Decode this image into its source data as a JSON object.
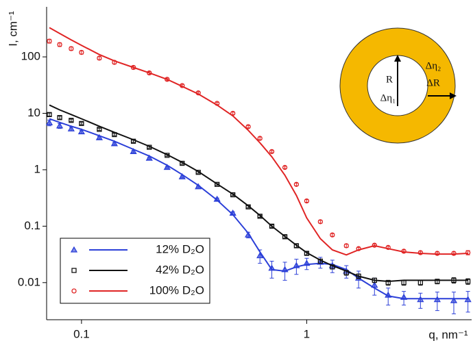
{
  "chart_data": {
    "type": "scatter",
    "x_label": "q, nm⁻¹",
    "y_label": "I, cm⁻¹",
    "log_x": true,
    "log_y": true,
    "xlim": [
      0.07,
      5.4
    ],
    "ylim": [
      0.0022,
      770
    ],
    "xticks": [
      0.1,
      1
    ],
    "yticks": [
      0.01,
      0.1,
      1,
      10,
      100
    ],
    "legend": "bottom-left",
    "x": [
      0.072,
      0.08,
      0.09,
      0.1,
      0.12,
      0.14,
      0.17,
      0.2,
      0.24,
      0.28,
      0.33,
      0.4,
      0.47,
      0.55,
      0.62,
      0.7,
      0.8,
      0.9,
      1.0,
      1.15,
      1.3,
      1.5,
      1.7,
      2.0,
      2.3,
      2.7,
      3.2,
      3.8,
      4.5,
      5.2
    ],
    "series": [
      {
        "name": "12% D₂O",
        "color": "#2b3fd8",
        "marker": "triangle",
        "values": [
          6.8,
          6.0,
          5.3,
          4.7,
          3.7,
          2.9,
          2.1,
          1.6,
          1.1,
          0.75,
          0.5,
          0.3,
          0.17,
          0.07,
          0.03,
          0.018,
          0.017,
          0.02,
          0.022,
          0.023,
          0.02,
          0.016,
          0.012,
          0.009,
          0.006,
          0.0055,
          0.005,
          0.005,
          0.0048,
          0.005
        ],
        "errors": [
          0.8,
          0.6,
          0.4,
          0.3,
          0.2,
          0.15,
          0.1,
          0.06,
          0.04,
          0.03,
          0.02,
          0.015,
          0.01,
          0.008,
          0.008,
          0.006,
          0.006,
          0.006,
          0.005,
          0.005,
          0.005,
          0.004,
          0.004,
          0.003,
          0.002,
          0.0015,
          0.0015,
          0.0018,
          0.002,
          0.002
        ],
        "fit": [
          8,
          6.9,
          5.9,
          5.2,
          4.0,
          3.2,
          2.3,
          1.75,
          1.2,
          0.82,
          0.53,
          0.29,
          0.16,
          0.075,
          0.035,
          0.017,
          0.016,
          0.019,
          0.021,
          0.022,
          0.021,
          0.017,
          0.012,
          0.008,
          0.0058,
          0.0052,
          0.0052,
          0.0052,
          0.0052,
          0.0052
        ]
      },
      {
        "name": "42% D₂O",
        "color": "#111111",
        "marker": "square",
        "values": [
          9.5,
          8.4,
          7.5,
          6.6,
          5.2,
          4.2,
          3.2,
          2.5,
          1.8,
          1.3,
          0.9,
          0.55,
          0.36,
          0.22,
          0.15,
          0.1,
          0.065,
          0.045,
          0.033,
          0.024,
          0.019,
          0.015,
          0.013,
          0.011,
          0.01,
          0.01,
          0.01,
          0.0105,
          0.011,
          0.0105
        ],
        "errors": [
          0.6,
          0.5,
          0.4,
          0.3,
          0.25,
          0.2,
          0.15,
          0.1,
          0.07,
          0.05,
          0.035,
          0.02,
          0.015,
          0.01,
          0.007,
          0.005,
          0.004,
          0.003,
          0.002,
          0.002,
          0.0015,
          0.0015,
          0.0012,
          0.001,
          0.001,
          0.001,
          0.001,
          0.001,
          0.0012,
          0.0012
        ],
        "fit": [
          14,
          11.5,
          9.5,
          8,
          5.9,
          4.6,
          3.4,
          2.6,
          1.85,
          1.35,
          0.93,
          0.56,
          0.37,
          0.23,
          0.155,
          0.1,
          0.066,
          0.046,
          0.034,
          0.025,
          0.02,
          0.016,
          0.013,
          0.011,
          0.0105,
          0.011,
          0.011,
          0.011,
          0.011,
          0.011
        ]
      },
      {
        "name": "100% D₂O",
        "color": "#e02424",
        "marker": "circle",
        "values": [
          190,
          165,
          140,
          120,
          95,
          80,
          65,
          52,
          40,
          31,
          23,
          15,
          10,
          5.8,
          3.6,
          2.1,
          1.1,
          0.55,
          0.28,
          0.12,
          0.07,
          0.045,
          0.04,
          0.046,
          0.042,
          0.036,
          0.034,
          0.033,
          0.033,
          0.034
        ],
        "errors": [
          15,
          12,
          10,
          8,
          6,
          5,
          4,
          3,
          2,
          1.5,
          1,
          0.7,
          0.5,
          0.3,
          0.2,
          0.1,
          0.05,
          0.03,
          0.015,
          0.007,
          0.004,
          0.003,
          0.002,
          0.002,
          0.002,
          0.002,
          0.002,
          0.002,
          0.002,
          0.003
        ],
        "fit": [
          330,
          260,
          200,
          160,
          110,
          85,
          65,
          52,
          40,
          30,
          22,
          14,
          9,
          5,
          3,
          1.7,
          0.8,
          0.35,
          0.14,
          0.06,
          0.038,
          0.031,
          0.038,
          0.045,
          0.04,
          0.035,
          0.033,
          0.032,
          0.032,
          0.033
        ]
      }
    ],
    "inset": {
      "labels": [
        "R",
        "Δη₁",
        "Δη₂",
        "ΔR"
      ]
    }
  }
}
